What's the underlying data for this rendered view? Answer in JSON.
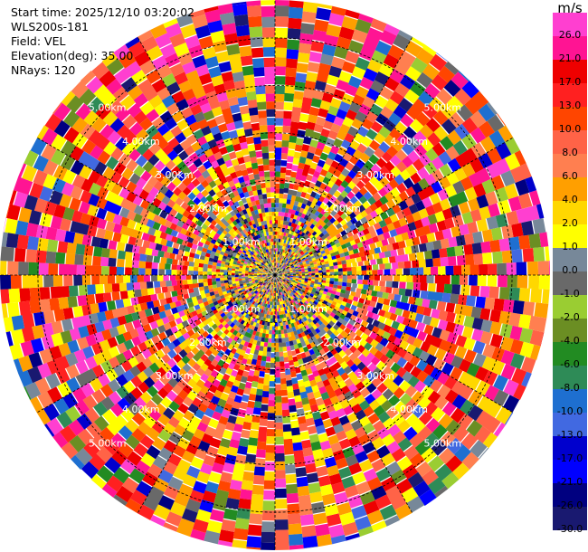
{
  "header": {
    "start_time": "Start time: 2025/12/10 03:20:02",
    "instrument": "WLS200s-181",
    "field": "Field: VEL",
    "elevation": "Elevation(deg): 35.00",
    "nrays": "NRays: 120"
  },
  "chart_data": {
    "type": "heatmap",
    "subtype": "polar-ppi",
    "field": "VEL",
    "units": "m/s",
    "elevation_deg": 35.0,
    "n_rays": 120,
    "range_rings_km": [
      1.0,
      2.0,
      3.0,
      4.0,
      5.0
    ],
    "range_ring_labels": [
      "1.00km",
      "2.00km",
      "3.00km",
      "4.00km",
      "5.00km"
    ],
    "max_range_km": 5.8,
    "azimuth_lines_deg": [
      0,
      30,
      60,
      90,
      120,
      150,
      180,
      210,
      240,
      270,
      300,
      330
    ],
    "colorbar": {
      "unit": "m/s",
      "ticks": [
        "26.0",
        "21.0",
        "17.0",
        "13.0",
        "10.0",
        "8.0",
        "6.0",
        "4.0",
        "2.0",
        "1.0",
        "0.0",
        "-1.0",
        "-2.0",
        "-4.0",
        "-6.0",
        "-8.0",
        "-10.0",
        "-13.0",
        "-17.0",
        "-21.0",
        "-26.0",
        "-30.0"
      ],
      "colors": [
        "#ff3fd0",
        "#ff1493",
        "#ee0000",
        "#ff2020",
        "#ff4500",
        "#ff6347",
        "#ff7f50",
        "#ff9f00",
        "#ffd700",
        "#ffff00",
        "#778899",
        "#696969",
        "#9acd32",
        "#6b8e23",
        "#228b22",
        "#2e8b57",
        "#1e6fd0",
        "#4169e1",
        "#0000cd",
        "#0000ff",
        "#000080",
        "#191970"
      ]
    }
  }
}
